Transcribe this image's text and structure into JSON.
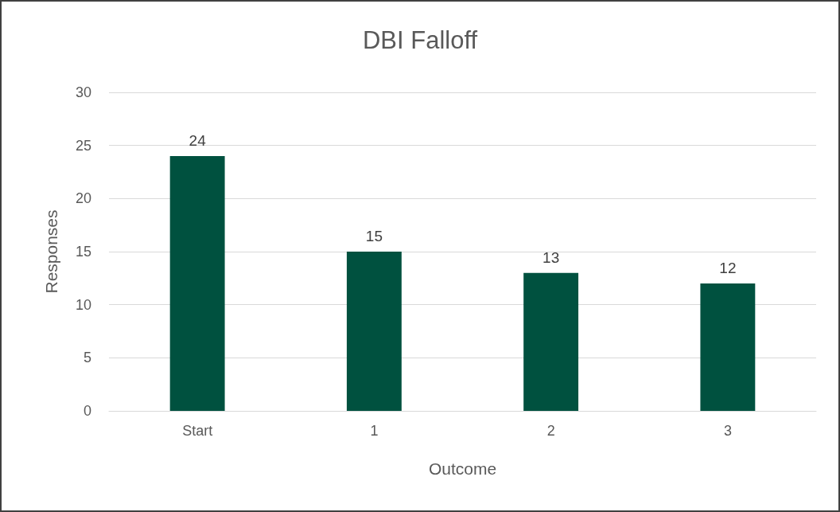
{
  "chart_data": {
    "type": "bar",
    "title": "DBI Falloff",
    "xlabel": "Outcome",
    "ylabel": "Responses",
    "categories": [
      "Start",
      "1",
      "2",
      "3"
    ],
    "values": [
      24,
      15,
      13,
      12
    ],
    "color": "#00513f",
    "ylim": [
      0,
      30
    ],
    "yticks": [
      0,
      5,
      10,
      15,
      20,
      25,
      30
    ],
    "grid": "y",
    "data_labels": true
  }
}
